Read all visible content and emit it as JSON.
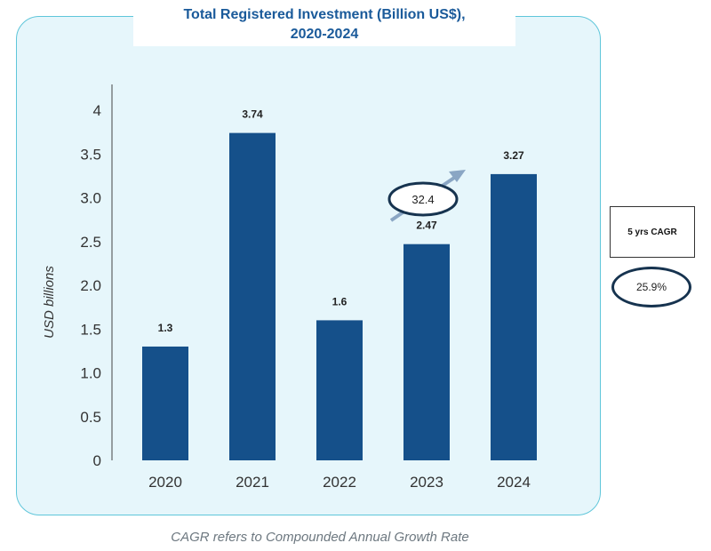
{
  "chart_data": {
    "type": "bar",
    "title_line1": "Total Registered Investment (Billion US$),",
    "title_line2": "2020-2024",
    "ylabel": "USD billions",
    "xlabel": "",
    "categories": [
      "2020",
      "2021",
      "2022",
      "2023",
      "2024"
    ],
    "values": [
      1.3,
      3.74,
      1.6,
      2.47,
      3.27
    ],
    "value_labels": [
      "1.3",
      "3.74",
      "1.6",
      "2.47",
      "3.27"
    ],
    "yticks": [
      "0",
      "0.5",
      "1.0",
      "1.5",
      "2.0",
      "2.5",
      "3.0",
      "3.5",
      "4"
    ],
    "ylim": [
      0,
      4.25
    ],
    "bar_color": "#15508a",
    "annotation": {
      "label": "32.4",
      "arrow_color": "#8aa6c4"
    }
  },
  "cagr": {
    "label": "5 yrs CAGR",
    "value": "25.9%"
  },
  "footnote": "CAGR refers to Compounded Annual Growth Rate"
}
